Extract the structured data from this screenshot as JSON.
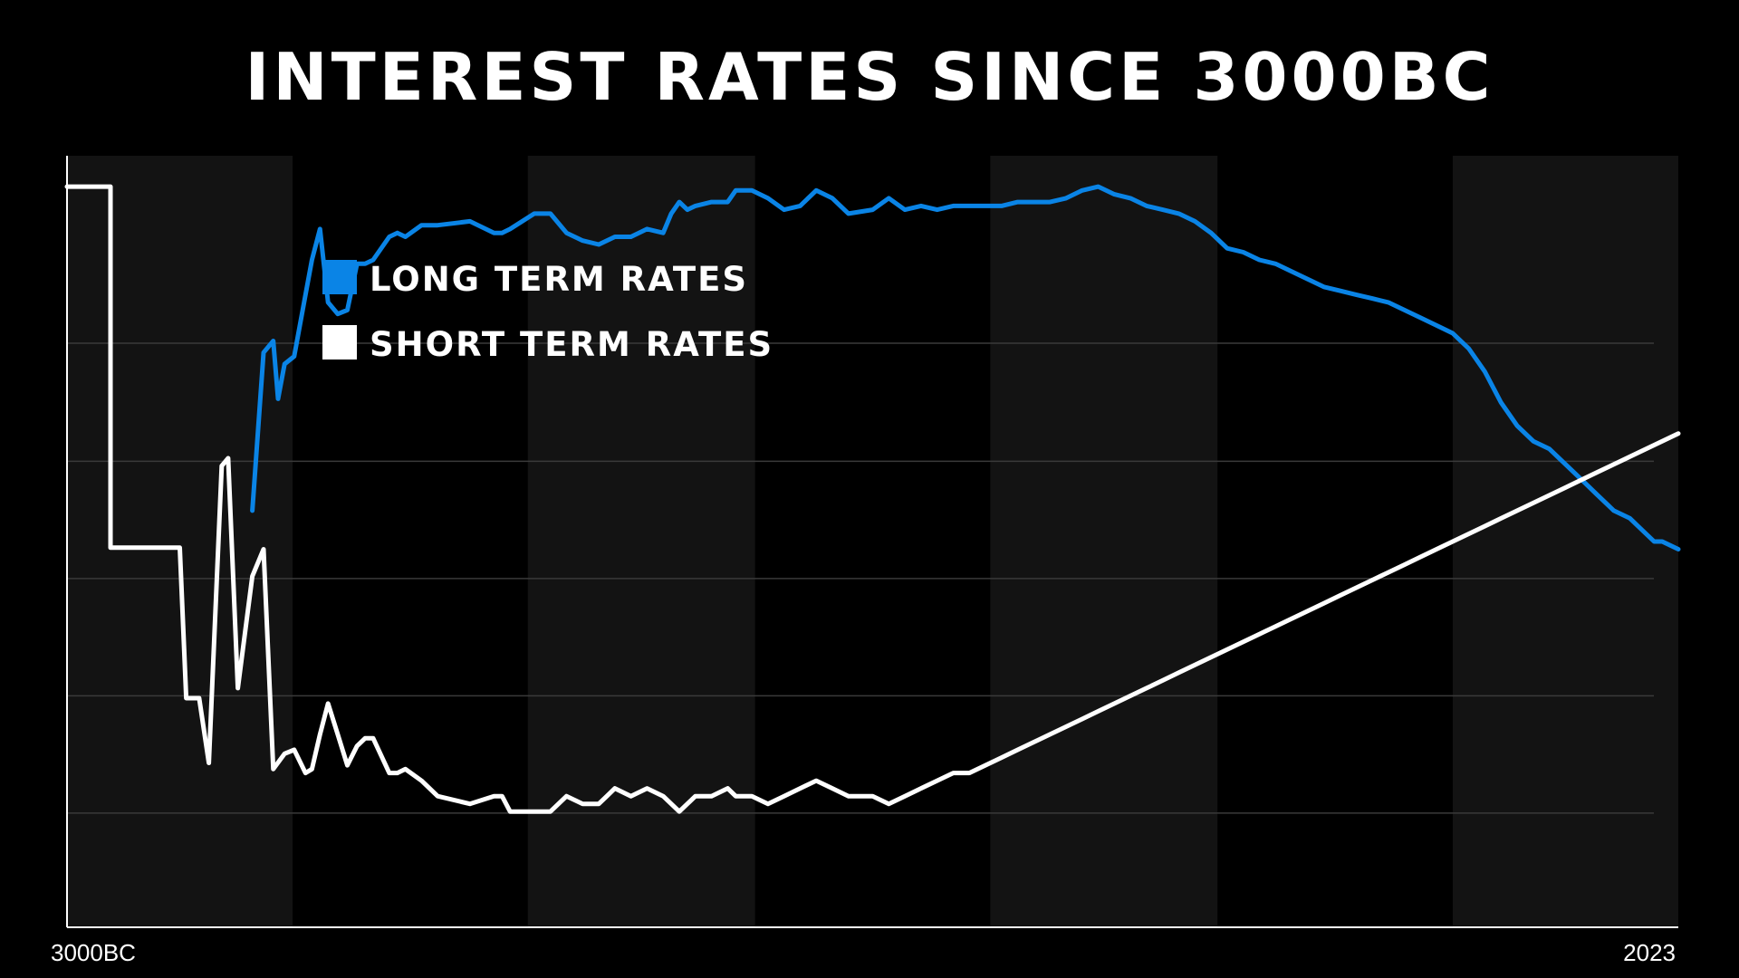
{
  "chart_data": {
    "type": "line",
    "title": "INTEREST RATES SINCE 3000BC",
    "xlabel": "",
    "ylabel": "",
    "x_tick_labels": [
      "3000BC",
      "2023"
    ],
    "grid": true,
    "legend_position": "top-left",
    "colors": {
      "background": "#000000",
      "band": "#131313",
      "long_term": "#0a84e6",
      "short_term": "#ffffff",
      "grid": "#3a3a3a",
      "axis": "#ffffff"
    },
    "series": [
      {
        "name": "LONG TERM RATES",
        "color": "#0a84e6",
        "points": [
          [
            0.115,
            0.54
          ],
          [
            0.122,
            0.745
          ],
          [
            0.128,
            0.76
          ],
          [
            0.131,
            0.685
          ],
          [
            0.135,
            0.73
          ],
          [
            0.141,
            0.74
          ],
          [
            0.148,
            0.82
          ],
          [
            0.152,
            0.865
          ],
          [
            0.157,
            0.905
          ],
          [
            0.162,
            0.81
          ],
          [
            0.168,
            0.795
          ],
          [
            0.174,
            0.8
          ],
          [
            0.18,
            0.86
          ],
          [
            0.185,
            0.86
          ],
          [
            0.19,
            0.865
          ],
          [
            0.2,
            0.895
          ],
          [
            0.205,
            0.9
          ],
          [
            0.21,
            0.895
          ],
          [
            0.22,
            0.91
          ],
          [
            0.23,
            0.91
          ],
          [
            0.25,
            0.915
          ],
          [
            0.265,
            0.9
          ],
          [
            0.27,
            0.9
          ],
          [
            0.275,
            0.905
          ],
          [
            0.29,
            0.925
          ],
          [
            0.3,
            0.925
          ],
          [
            0.31,
            0.9
          ],
          [
            0.32,
            0.89
          ],
          [
            0.33,
            0.885
          ],
          [
            0.335,
            0.89
          ],
          [
            0.34,
            0.895
          ],
          [
            0.35,
            0.895
          ],
          [
            0.36,
            0.905
          ],
          [
            0.37,
            0.9
          ],
          [
            0.375,
            0.925
          ],
          [
            0.38,
            0.94
          ],
          [
            0.385,
            0.93
          ],
          [
            0.39,
            0.935
          ],
          [
            0.4,
            0.94
          ],
          [
            0.41,
            0.94
          ],
          [
            0.415,
            0.955
          ],
          [
            0.425,
            0.955
          ],
          [
            0.435,
            0.945
          ],
          [
            0.445,
            0.93
          ],
          [
            0.455,
            0.935
          ],
          [
            0.465,
            0.955
          ],
          [
            0.475,
            0.945
          ],
          [
            0.485,
            0.925
          ],
          [
            0.5,
            0.93
          ],
          [
            0.51,
            0.945
          ],
          [
            0.52,
            0.93
          ],
          [
            0.53,
            0.935
          ],
          [
            0.54,
            0.93
          ],
          [
            0.55,
            0.935
          ],
          [
            0.56,
            0.935
          ],
          [
            0.57,
            0.935
          ],
          [
            0.58,
            0.935
          ],
          [
            0.59,
            0.94
          ],
          [
            0.6,
            0.94
          ],
          [
            0.61,
            0.94
          ],
          [
            0.62,
            0.945
          ],
          [
            0.63,
            0.955
          ],
          [
            0.64,
            0.96
          ],
          [
            0.65,
            0.95
          ],
          [
            0.66,
            0.945
          ],
          [
            0.67,
            0.935
          ],
          [
            0.68,
            0.93
          ],
          [
            0.69,
            0.925
          ],
          [
            0.7,
            0.915
          ],
          [
            0.71,
            0.9
          ],
          [
            0.72,
            0.88
          ],
          [
            0.73,
            0.875
          ],
          [
            0.74,
            0.865
          ],
          [
            0.75,
            0.86
          ],
          [
            0.76,
            0.85
          ],
          [
            0.77,
            0.84
          ],
          [
            0.78,
            0.83
          ],
          [
            0.79,
            0.825
          ],
          [
            0.8,
            0.82
          ],
          [
            0.81,
            0.815
          ],
          [
            0.82,
            0.81
          ],
          [
            0.83,
            0.8
          ],
          [
            0.84,
            0.79
          ],
          [
            0.85,
            0.78
          ],
          [
            0.86,
            0.77
          ],
          [
            0.87,
            0.75
          ],
          [
            0.88,
            0.72
          ],
          [
            0.89,
            0.68
          ],
          [
            0.9,
            0.65
          ],
          [
            0.91,
            0.63
          ],
          [
            0.92,
            0.62
          ],
          [
            0.93,
            0.6
          ],
          [
            0.94,
            0.58
          ],
          [
            0.95,
            0.56
          ],
          [
            0.96,
            0.54
          ],
          [
            0.97,
            0.53
          ],
          [
            0.975,
            0.52
          ],
          [
            0.98,
            0.51
          ],
          [
            0.985,
            0.5
          ],
          [
            0.99,
            0.5
          ],
          [
            0.995,
            0.495
          ],
          [
            1.0,
            0.49
          ]
        ]
      },
      {
        "name": "SHORT TERM RATES",
        "color": "#ffffff",
        "points": [
          [
            0.0,
            0.96
          ],
          [
            0.027,
            0.96
          ],
          [
            0.027,
            0.492
          ],
          [
            0.07,
            0.492
          ],
          [
            0.074,
            0.297
          ],
          [
            0.082,
            0.297
          ],
          [
            0.088,
            0.213
          ],
          [
            0.096,
            0.598
          ],
          [
            0.1,
            0.608
          ],
          [
            0.106,
            0.31
          ],
          [
            0.115,
            0.455
          ],
          [
            0.122,
            0.49
          ],
          [
            0.128,
            0.205
          ],
          [
            0.135,
            0.225
          ],
          [
            0.141,
            0.23
          ],
          [
            0.148,
            0.2
          ],
          [
            0.152,
            0.205
          ],
          [
            0.157,
            0.25
          ],
          [
            0.162,
            0.29
          ],
          [
            0.168,
            0.25
          ],
          [
            0.174,
            0.21
          ],
          [
            0.18,
            0.235
          ],
          [
            0.185,
            0.245
          ],
          [
            0.19,
            0.245
          ],
          [
            0.2,
            0.2
          ],
          [
            0.205,
            0.2
          ],
          [
            0.21,
            0.205
          ],
          [
            0.22,
            0.19
          ],
          [
            0.23,
            0.17
          ],
          [
            0.25,
            0.16
          ],
          [
            0.265,
            0.17
          ],
          [
            0.27,
            0.17
          ],
          [
            0.275,
            0.15
          ],
          [
            0.29,
            0.15
          ],
          [
            0.3,
            0.15
          ],
          [
            0.31,
            0.17
          ],
          [
            0.32,
            0.16
          ],
          [
            0.33,
            0.16
          ],
          [
            0.335,
            0.17
          ],
          [
            0.34,
            0.18
          ],
          [
            0.35,
            0.17
          ],
          [
            0.36,
            0.18
          ],
          [
            0.37,
            0.17
          ],
          [
            0.375,
            0.16
          ],
          [
            0.38,
            0.15
          ],
          [
            0.385,
            0.16
          ],
          [
            0.39,
            0.17
          ],
          [
            0.4,
            0.17
          ],
          [
            0.41,
            0.18
          ],
          [
            0.415,
            0.17
          ],
          [
            0.425,
            0.17
          ],
          [
            0.435,
            0.16
          ],
          [
            0.445,
            0.17
          ],
          [
            0.455,
            0.18
          ],
          [
            0.465,
            0.19
          ],
          [
            0.475,
            0.18
          ],
          [
            0.485,
            0.17
          ],
          [
            0.5,
            0.17
          ],
          [
            0.51,
            0.16
          ],
          [
            0.52,
            0.17
          ],
          [
            0.53,
            0.18
          ],
          [
            0.54,
            0.19
          ],
          [
            0.55,
            0.2
          ],
          [
            0.56,
            0.2
          ],
          [
            0.57,
            0.21
          ],
          [
            0.58,
            0.22
          ],
          [
            0.59,
            0.23
          ],
          [
            0.6,
            0.24
          ],
          [
            0.61,
            0.25
          ],
          [
            0.62,
            0.26
          ],
          [
            0.63,
            0.27
          ],
          [
            0.64,
            0.28
          ],
          [
            0.65,
            0.29
          ],
          [
            0.66,
            0.3
          ],
          [
            0.67,
            0.31
          ],
          [
            0.68,
            0.32
          ],
          [
            0.69,
            0.33
          ],
          [
            0.7,
            0.34
          ],
          [
            0.71,
            0.35
          ],
          [
            0.72,
            0.36
          ],
          [
            0.73,
            0.37
          ],
          [
            0.74,
            0.38
          ],
          [
            0.75,
            0.39
          ],
          [
            0.76,
            0.4
          ],
          [
            0.77,
            0.41
          ],
          [
            0.78,
            0.42
          ],
          [
            0.79,
            0.43
          ],
          [
            0.8,
            0.44
          ],
          [
            0.81,
            0.45
          ],
          [
            0.82,
            0.46
          ],
          [
            0.83,
            0.47
          ],
          [
            0.84,
            0.48
          ],
          [
            0.85,
            0.49
          ],
          [
            0.86,
            0.5
          ],
          [
            0.87,
            0.51
          ],
          [
            0.88,
            0.52
          ],
          [
            0.89,
            0.53
          ],
          [
            0.9,
            0.54
          ],
          [
            0.91,
            0.55
          ],
          [
            0.92,
            0.56
          ],
          [
            0.93,
            0.57
          ],
          [
            0.94,
            0.58
          ],
          [
            0.95,
            0.59
          ],
          [
            0.96,
            0.6
          ],
          [
            0.97,
            0.61
          ],
          [
            0.98,
            0.62
          ],
          [
            0.99,
            0.63
          ],
          [
            1.0,
            0.64
          ]
        ]
      }
    ]
  }
}
